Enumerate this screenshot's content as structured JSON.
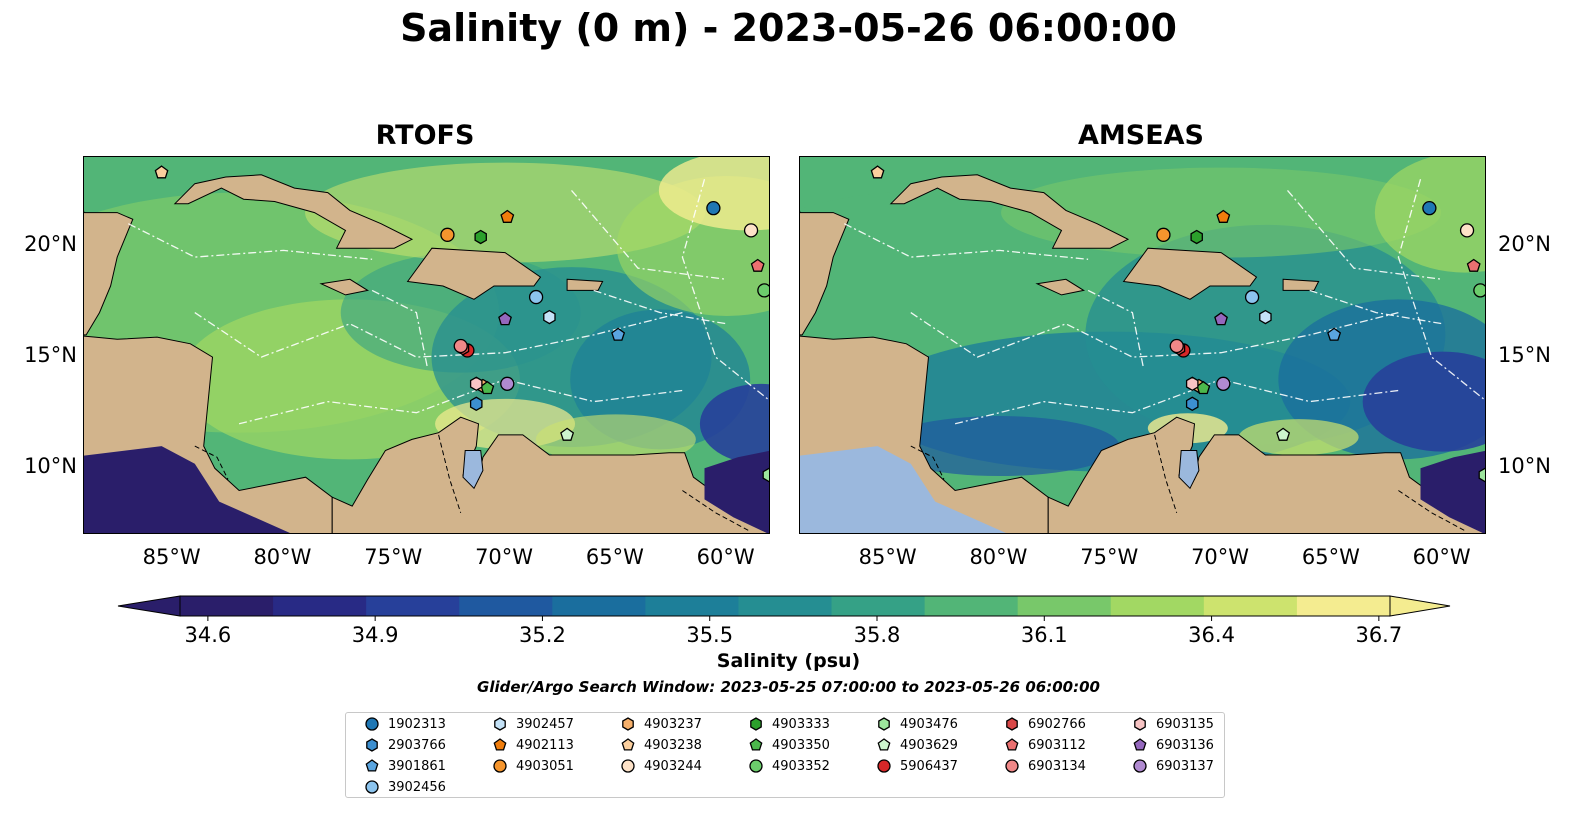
{
  "title": "Salinity (0 m) - 2023-05-26 06:00:00",
  "panels": [
    {
      "title": "RTOFS"
    },
    {
      "title": "AMSEAS"
    }
  ],
  "map_extent": {
    "lon": [
      -89,
      -58
    ],
    "lat": [
      7,
      24
    ]
  },
  "lon_ticks": [
    {
      "value": -85,
      "label": "85°W"
    },
    {
      "value": -80,
      "label": "80°W"
    },
    {
      "value": -75,
      "label": "75°W"
    },
    {
      "value": -70,
      "label": "70°W"
    },
    {
      "value": -65,
      "label": "65°W"
    },
    {
      "value": -60,
      "label": "60°W"
    }
  ],
  "lat_ticks": [
    {
      "value": 20,
      "label": "20°N"
    },
    {
      "value": 15,
      "label": "15°N"
    },
    {
      "value": 10,
      "label": "10°N"
    }
  ],
  "colorbar": {
    "label": "Salinity (psu)",
    "min": 34.55,
    "max": 36.72,
    "ticks": [
      "34.6",
      "34.9",
      "35.2",
      "35.5",
      "35.8",
      "36.1",
      "36.4",
      "36.7"
    ],
    "colors": [
      "#2a1e6a",
      "#282a85",
      "#27409a",
      "#1f59a0",
      "#1a6e9e",
      "#1d7f99",
      "#258e92",
      "#35a186",
      "#52b577",
      "#78c86a",
      "#a2d863",
      "#cde36e",
      "#f4ec90"
    ]
  },
  "search_window": "Glider/Argo Search Window: 2023-05-25 07:00:00 to 2023-05-26 06:00:00",
  "colors": {
    "land": "#d2b48c",
    "lakes": "#9bb8dd",
    "background": "#ffffff"
  },
  "floats": [
    {
      "id": "1902313",
      "marker": "circle",
      "color": "#1f77b4",
      "lon": -60.6,
      "lat": 21.7
    },
    {
      "id": "2903766",
      "marker": "hexagon",
      "color": "#3c8fd0",
      "lon": -71.3,
      "lat": 12.9
    },
    {
      "id": "3901861",
      "marker": "pentagon",
      "color": "#5aa5e0",
      "lon": -64.9,
      "lat": 16.0
    },
    {
      "id": "3902456",
      "marker": "circle",
      "color": "#8cc4ee",
      "lon": -68.6,
      "lat": 17.7
    },
    {
      "id": "3902457",
      "marker": "hexagon",
      "color": "#c4e2f7",
      "lon": -68.0,
      "lat": 16.8
    },
    {
      "id": "4902113",
      "marker": "pentagon",
      "color": "#f07d0c",
      "lon": -69.9,
      "lat": 21.3
    },
    {
      "id": "4903051",
      "marker": "circle",
      "color": "#f5952d",
      "lon": -72.6,
      "lat": 20.5
    },
    {
      "id": "4903237",
      "marker": "hexagon",
      "color": "#f6b06b",
      "lon": -71.0,
      "lat": 13.7
    },
    {
      "id": "4903238",
      "marker": "pentagon",
      "color": "#fbcf9e",
      "lon": -85.5,
      "lat": 23.3
    },
    {
      "id": "4903244",
      "marker": "circle",
      "color": "#fde2c8",
      "lon": -58.9,
      "lat": 20.7
    },
    {
      "id": "4903333",
      "marker": "hexagon",
      "color": "#2ca02c",
      "lon": -71.1,
      "lat": 20.4
    },
    {
      "id": "4903350",
      "marker": "pentagon",
      "color": "#4cb84c",
      "lon": -70.8,
      "lat": 13.6
    },
    {
      "id": "4903352",
      "marker": "circle",
      "color": "#6ccd6c",
      "lon": -58.3,
      "lat": 18.0
    },
    {
      "id": "4903476",
      "marker": "hexagon",
      "color": "#9de59d",
      "lon": -58.1,
      "lat": 9.7
    },
    {
      "id": "4903629",
      "marker": "pentagon",
      "color": "#cdf5cd",
      "lon": -67.2,
      "lat": 11.5
    },
    {
      "id": "5906437",
      "marker": "circle",
      "color": "#d62728",
      "lon": -71.7,
      "lat": 15.3
    },
    {
      "id": "6902766",
      "marker": "hexagon",
      "color": "#d94848",
      "lon": -71.9,
      "lat": 15.4
    },
    {
      "id": "6903112",
      "marker": "pentagon",
      "color": "#eb7070",
      "lon": -58.6,
      "lat": 19.1
    },
    {
      "id": "6903134",
      "marker": "circle",
      "color": "#f08888",
      "lon": -72.0,
      "lat": 15.5
    },
    {
      "id": "6903135",
      "marker": "hexagon",
      "color": "#f7c4c4",
      "lon": -71.3,
      "lat": 13.8
    },
    {
      "id": "6903136",
      "marker": "pentagon",
      "color": "#9467bd",
      "lon": -70.0,
      "lat": 16.7
    },
    {
      "id": "6903137",
      "marker": "circle",
      "color": "#b08ad0",
      "lon": -69.9,
      "lat": 13.8
    }
  ]
}
